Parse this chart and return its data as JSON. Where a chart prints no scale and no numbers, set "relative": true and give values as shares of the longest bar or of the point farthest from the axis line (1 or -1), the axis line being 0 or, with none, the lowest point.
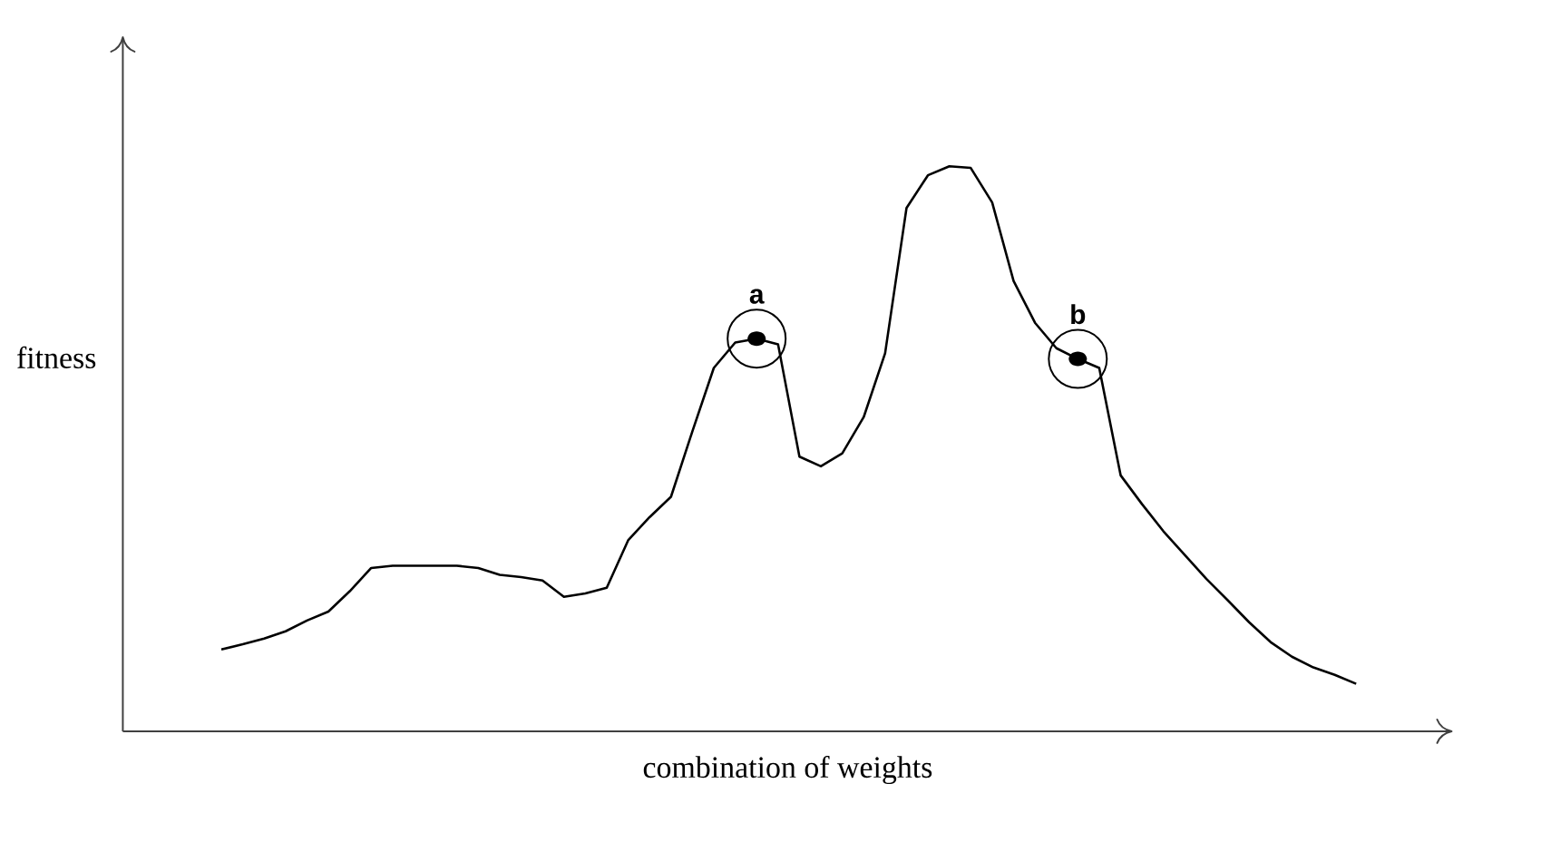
{
  "chart_data": {
    "type": "line",
    "relative": true,
    "xlabel": "combination of weights",
    "ylabel": "fitness",
    "color": "#000000",
    "line_style": "solid",
    "categories": [
      null,
      null,
      null,
      null,
      null,
      null,
      null,
      null,
      null,
      null,
      null,
      null,
      null,
      null,
      null,
      null,
      null,
      null,
      null,
      null,
      null,
      null,
      null,
      null,
      null,
      null,
      null,
      null,
      null,
      null,
      null,
      null,
      null,
      null,
      null,
      null,
      null,
      null,
      null,
      null,
      null,
      null,
      null,
      null,
      null,
      null,
      null,
      null,
      null,
      null,
      null,
      null,
      null,
      null
    ],
    "values": [
      0.145,
      0.154,
      0.164,
      0.177,
      0.196,
      0.212,
      0.248,
      0.289,
      0.293,
      0.293,
      0.293,
      0.293,
      0.289,
      0.277,
      0.273,
      0.267,
      0.238,
      0.244,
      0.254,
      0.338,
      0.379,
      0.415,
      0.531,
      0.643,
      0.688,
      0.695,
      0.685,
      0.486,
      0.469,
      0.492,
      0.556,
      0.669,
      0.926,
      0.984,
      1,
      0.997,
      0.936,
      0.797,
      0.723,
      0.678,
      0.659,
      0.643,
      0.453,
      0.402,
      0.354,
      0.312,
      0.27,
      0.232,
      0.193,
      0.158,
      0.132,
      0.113,
      0.1,
      0.084
    ],
    "annotations": [
      {
        "text": "a",
        "y": 0.695
      },
      {
        "text": "b",
        "y": 0.659
      }
    ]
  }
}
